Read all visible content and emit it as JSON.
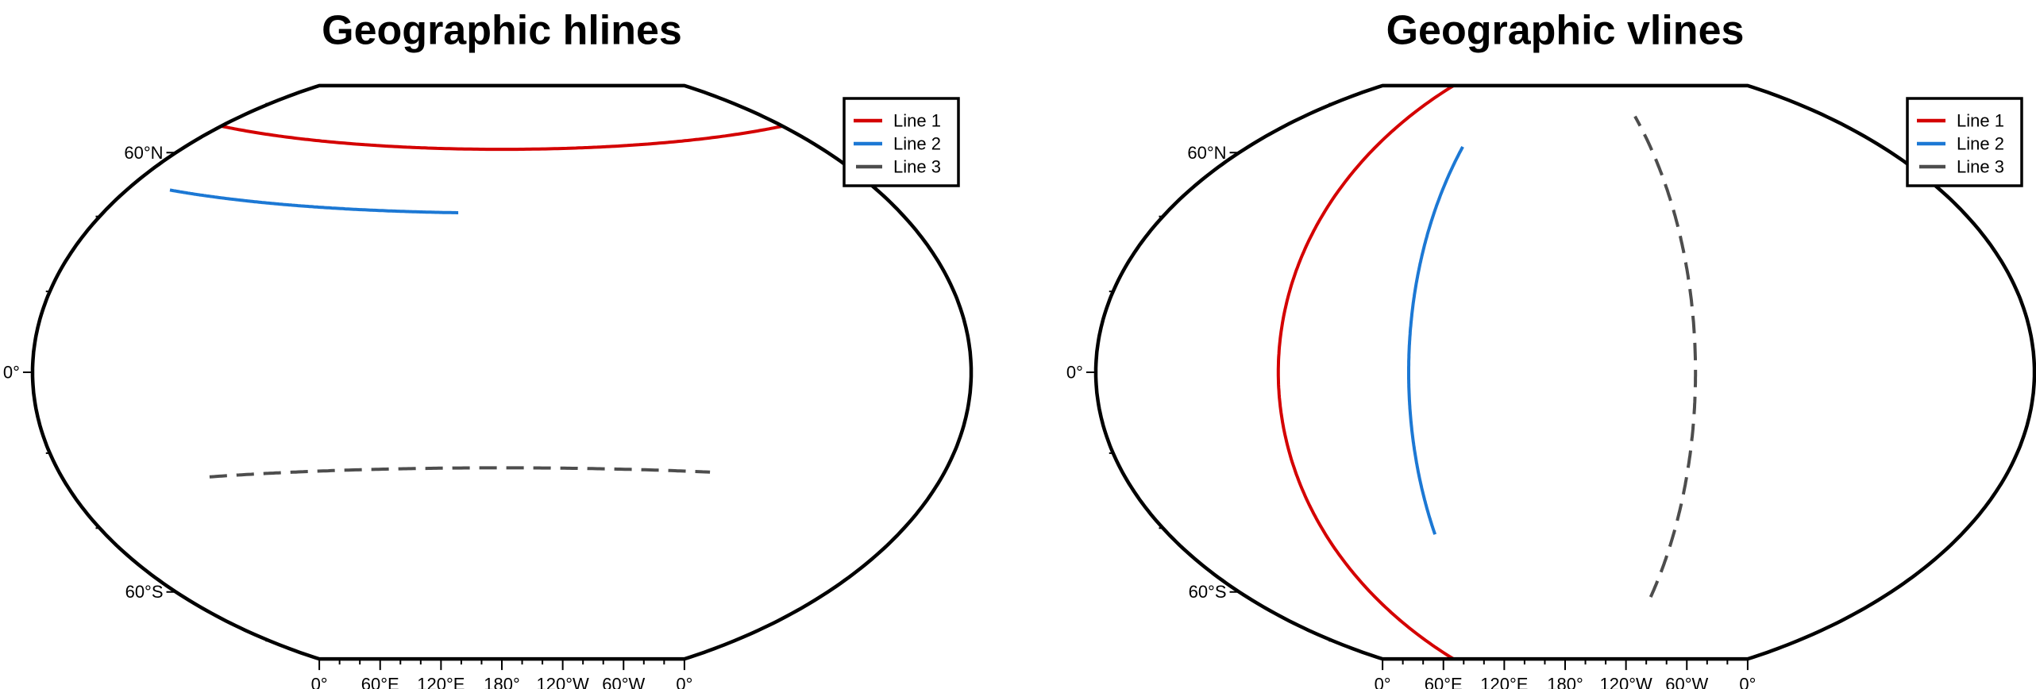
{
  "chart_data": [
    {
      "type": "line",
      "title": "Geographic hlines",
      "projection": "Winkel Tripel",
      "central_meridian": 180,
      "xlim": [
        0,
        360
      ],
      "ylim": [
        -90,
        90
      ],
      "grid": false,
      "legend_position": "top-right",
      "x_tick_labels": [
        "0°",
        "60°E",
        "120°E",
        "180°",
        "120°W",
        "60°W",
        "0°"
      ],
      "y_tick_labels": [
        "60°S",
        "0°",
        "60°N"
      ],
      "series": [
        {
          "name": "Line 1",
          "color": "#d40000",
          "style": "solid",
          "lat": [
            70,
            70
          ],
          "lon": [
            0,
            360
          ]
        },
        {
          "name": "Line 2",
          "color": "#1c78d4",
          "style": "solid",
          "lat": [
            50,
            50
          ],
          "lon": [
            20,
            160
          ]
        },
        {
          "name": "Line 3",
          "color": "#4d4d4d",
          "style": "dashed",
          "lat": [
            -30,
            -30
          ],
          "lon": [
            60,
            265
          ]
        }
      ]
    },
    {
      "type": "line",
      "title": "Geographic vlines",
      "projection": "Winkel Tripel",
      "central_meridian": 180,
      "xlim": [
        0,
        360
      ],
      "ylim": [
        -90,
        90
      ],
      "grid": false,
      "legend_position": "top-right",
      "x_tick_labels": [
        "0°",
        "60°E",
        "120°E",
        "180°",
        "120°W",
        "60°W",
        "0°"
      ],
      "y_tick_labels": [
        "60°S",
        "0°",
        "60°N"
      ],
      "series": [
        {
          "name": "Line 1",
          "color": "#d40000",
          "style": "solid",
          "lon": [
            70,
            70
          ],
          "lat": [
            -90,
            90
          ]
        },
        {
          "name": "Line 2",
          "color": "#1c78d4",
          "style": "solid",
          "lon": [
            120,
            120
          ],
          "lat": [
            -50,
            70
          ]
        },
        {
          "name": "Line 3",
          "color": "#4d4d4d",
          "style": "dashed",
          "lon": [
            230,
            230
          ],
          "lat": [
            -70,
            80
          ]
        }
      ]
    }
  ]
}
